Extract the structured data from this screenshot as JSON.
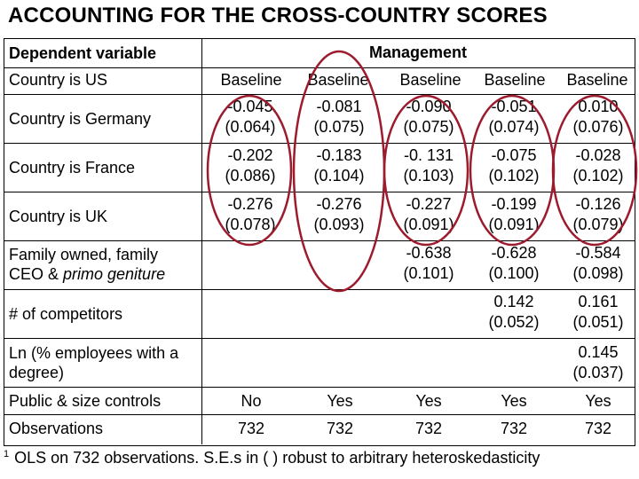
{
  "title": "ACCOUNTING FOR THE CROSS-COUNTRY SCORES",
  "header": {
    "dep_var_label": "Dependent variable",
    "management_label": "Management"
  },
  "rows": [
    {
      "label": "Country is US",
      "values": [
        "Baseline",
        "Baseline",
        "Baseline",
        "Baseline",
        "Baseline"
      ]
    },
    {
      "label": "Country is Germany",
      "values": [
        [
          "-0.045",
          "(0.064)"
        ],
        [
          "-0.081",
          "(0.075)"
        ],
        [
          "-0.090",
          "(0.075)"
        ],
        [
          "-0.051",
          "(0.074)"
        ],
        [
          "0.010",
          "(0.076)"
        ]
      ]
    },
    {
      "label": "Country is France",
      "values": [
        [
          "-0.202",
          "(0.086)"
        ],
        [
          "-0.183",
          "(0.104)"
        ],
        [
          "-0. 131",
          "(0.103)"
        ],
        [
          "-0.075",
          "(0.102)"
        ],
        [
          "-0.028",
          "(0.102)"
        ]
      ]
    },
    {
      "label": "Country is UK",
      "values": [
        [
          "-0.276",
          "(0.078)"
        ],
        [
          "-0.276",
          "(0.093)"
        ],
        [
          "-0.227",
          "(0.091)"
        ],
        [
          "-0.199",
          "(0.091)"
        ],
        [
          "-0.126",
          "(0.079)"
        ]
      ]
    },
    {
      "label_line1": "Family owned, family",
      "label_line2_prefix": "CEO & ",
      "label_line2_italic": "primo geniture",
      "values": [
        null,
        null,
        [
          "-0.638",
          "(0.101)"
        ],
        [
          "-0.628",
          "(0.100)"
        ],
        [
          "-0.584",
          "(0.098)"
        ]
      ]
    },
    {
      "label": "# of competitors",
      "values": [
        null,
        null,
        null,
        [
          "0.142",
          "(0.052)"
        ],
        [
          "0.161",
          "(0.051)"
        ]
      ]
    },
    {
      "label_line1": "Ln (% employees with a",
      "label_line2": "degree)",
      "values": [
        null,
        null,
        null,
        null,
        [
          "0.145",
          "(0.037)"
        ]
      ]
    },
    {
      "label": "Public & size controls",
      "values": [
        "No",
        "Yes",
        "Yes",
        "Yes",
        "Yes"
      ]
    },
    {
      "label": "Observations",
      "values": [
        "732",
        "732",
        "732",
        "732",
        "732"
      ]
    }
  ],
  "footnote": {
    "marker": "1",
    "text": "OLS on 732 observations. S.E.s in ( ) robust to arbitrary heteroskedasticity"
  },
  "colors": {
    "oval": "#9c1c2e",
    "text": "#000000",
    "background": "#ffffff"
  }
}
